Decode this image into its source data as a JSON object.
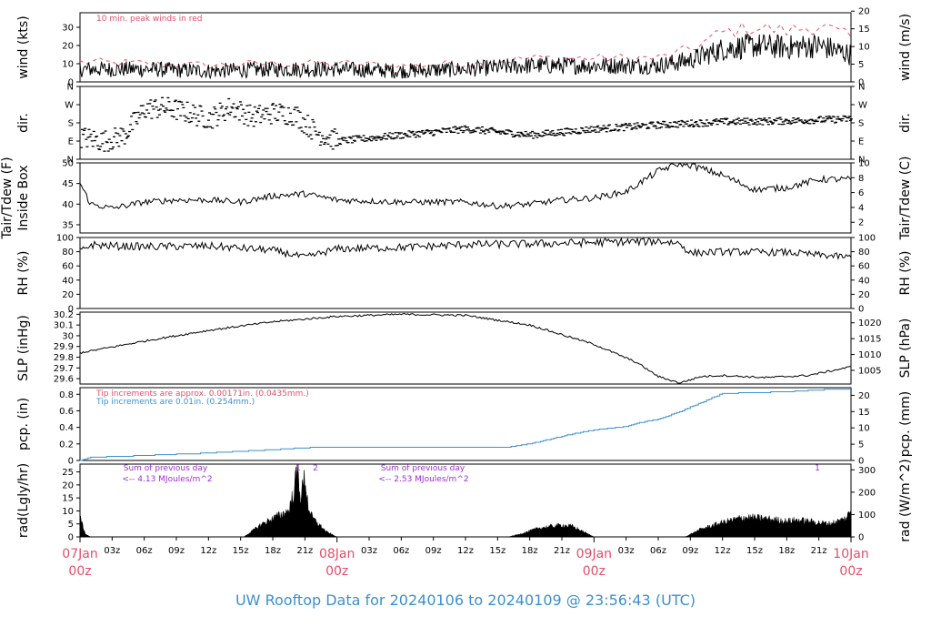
{
  "title": "UW Rooftop Data for 20240106  to  20240109 @ 23:56:43  (UTC)",
  "colors": {
    "red": "#e0506a",
    "blue": "#3b8fd1",
    "purple": "#9a2fd6",
    "line": "#000000"
  },
  "x_axis": {
    "hour_labels": [
      "03z",
      "06z",
      "09z",
      "12z",
      "15z",
      "18z",
      "21z"
    ],
    "days": [
      {
        "date": "07Jan",
        "hour": "00z"
      },
      {
        "date": "08Jan",
        "hour": "00z"
      },
      {
        "date": "09Jan",
        "hour": "00z"
      },
      {
        "date": "10Jan",
        "hour": "00z"
      }
    ]
  },
  "chart_data": [
    {
      "type": "line",
      "panel": "wind",
      "ylabel": "wind (kts)",
      "ylabel_right": "wind (m/s)",
      "ylim": [
        0,
        38
      ],
      "yticks": [
        0,
        10,
        20,
        30
      ],
      "yticks_right": [
        0,
        5,
        10,
        15,
        20
      ],
      "note": "10 min. peak winds in red",
      "x_hours": [
        0,
        6,
        12,
        18,
        24,
        30,
        36,
        42,
        48,
        54,
        57,
        60,
        63,
        66,
        69,
        72
      ],
      "series": [
        {
          "name": "",
          "values": [
            7,
            7,
            6,
            7,
            7,
            6,
            7,
            9,
            9,
            9,
            12,
            18,
            20,
            19,
            20,
            15
          ]
        },
        {
          "name": "10 min. peak",
          "values": [
            11,
            10,
            9,
            10,
            10,
            9,
            10,
            13,
            13,
            13,
            18,
            27,
            30,
            28,
            31,
            24
          ]
        }
      ]
    },
    {
      "type": "scatter",
      "panel": "dir",
      "ylabel": "dir.",
      "ylabel_right": "dir.",
      "yticks": [
        "N",
        "E",
        "S",
        "W",
        "N"
      ],
      "x_hours": [
        0,
        2,
        3,
        4,
        6,
        8,
        10,
        12,
        14,
        16,
        18,
        20,
        22,
        24,
        30,
        36,
        42,
        48,
        54,
        60,
        66,
        72
      ],
      "values_deg": [
        110,
        90,
        100,
        120,
        250,
        255,
        230,
        200,
        260,
        210,
        230,
        220,
        130,
        90,
        120,
        150,
        120,
        150,
        170,
        185,
        190,
        200
      ]
    },
    {
      "type": "line",
      "panel": "temp",
      "ylabel": "Tair/Tdew (F)",
      "ylabel2": "Inside Box",
      "ylabel_right": "Tair/Tdew (C)",
      "ylim": [
        33,
        50
      ],
      "yticks": [
        35,
        40,
        45,
        50
      ],
      "yticks_right": [
        2,
        4,
        6,
        8,
        10
      ],
      "x_hours": [
        0,
        1,
        3,
        6,
        9,
        12,
        15,
        18,
        21,
        24,
        30,
        36,
        39,
        42,
        45,
        48,
        51,
        54,
        56,
        57,
        60,
        63,
        66,
        69,
        72
      ],
      "values": [
        45,
        40,
        39,
        40.5,
        41,
        41,
        40.5,
        42,
        42.5,
        41,
        40.5,
        40.5,
        39.5,
        40,
        41,
        41.5,
        43,
        48,
        50,
        49.5,
        47,
        43.5,
        44,
        46,
        46
      ]
    },
    {
      "type": "line",
      "panel": "rh",
      "ylabel": "RH (%)",
      "ylabel_right": "RH (%)",
      "ylim": [
        0,
        100
      ],
      "yticks": [
        0,
        20,
        40,
        60,
        80,
        100
      ],
      "x_hours": [
        0,
        1,
        3,
        6,
        12,
        18,
        21,
        24,
        30,
        36,
        42,
        48,
        54,
        56,
        57,
        60,
        66,
        72
      ],
      "values": [
        80,
        90,
        88,
        87,
        88,
        82,
        72,
        84,
        86,
        90,
        91,
        93,
        95,
        92,
        78,
        80,
        79,
        72
      ]
    },
    {
      "type": "line",
      "panel": "slp",
      "ylabel": "SLP (inHg)",
      "ylabel_right": "SLP (hPa)",
      "ylim": [
        29.55,
        30.22
      ],
      "yticks": [
        29.6,
        29.7,
        29.8,
        29.9,
        30.0,
        30.1,
        30.2
      ],
      "yticks_right": [
        1005,
        1010,
        1015,
        1020
      ],
      "x_hours": [
        0,
        6,
        12,
        18,
        24,
        30,
        36,
        42,
        48,
        52,
        54,
        56,
        58,
        60,
        64,
        68,
        72
      ],
      "values": [
        29.84,
        29.95,
        30.05,
        30.13,
        30.18,
        30.2,
        30.19,
        30.1,
        29.92,
        29.75,
        29.62,
        29.56,
        29.62,
        29.63,
        29.61,
        29.63,
        29.71
      ]
    },
    {
      "type": "line",
      "panel": "pcp",
      "ylabel": "pcp. (in)",
      "ylabel_right": "pcp. (mm)",
      "ylim": [
        0,
        0.88
      ],
      "yticks": [
        0.0,
        0.2,
        0.4,
        0.6,
        0.8
      ],
      "yticks_right": [
        0,
        5,
        10,
        15,
        20
      ],
      "note_red": "Tip increments are approx. 0.00171in. (0.0435mm.)",
      "note_blue": "Tip increments are 0.01in. (0.254mm.)",
      "x_hours": [
        0,
        1,
        4,
        12,
        18,
        22,
        40,
        42,
        44,
        46,
        48,
        51,
        52,
        54,
        56,
        60,
        63,
        66,
        70,
        72
      ],
      "values": [
        0.0,
        0.04,
        0.05,
        0.09,
        0.13,
        0.16,
        0.16,
        0.2,
        0.26,
        0.32,
        0.37,
        0.41,
        0.45,
        0.5,
        0.59,
        0.81,
        0.82,
        0.83,
        0.86,
        0.86
      ]
    },
    {
      "type": "area",
      "panel": "rad",
      "ylabel": "rad(Lgly/hr)",
      "ylabel_right": "rad (W/m^2)",
      "ylim": [
        0,
        28
      ],
      "yticks": [
        0,
        5,
        10,
        15,
        20,
        25
      ],
      "yticks_right": [
        0,
        100,
        200,
        300
      ],
      "notes": [
        {
          "line1": "Sum of previous day",
          "line2": "<-- 4.13 MJoules/m^2"
        },
        {
          "line1": "Sum of previous day",
          "line2": "<-- 2.53 MJoules/m^2"
        }
      ],
      "markers": [
        "1",
        "2",
        "1"
      ],
      "x_hours": [
        0,
        0.2,
        0.5,
        1,
        15.3,
        16,
        17,
        18,
        19,
        19.5,
        20,
        20.3,
        20.6,
        21,
        21.3,
        21.6,
        22,
        23,
        24,
        40,
        41,
        43,
        45,
        46,
        47,
        48,
        56.5,
        58,
        60,
        62,
        64,
        66,
        67,
        70,
        71.5,
        72
      ],
      "values": [
        10,
        5,
        1,
        0,
        0,
        2,
        5,
        7,
        9,
        10,
        18,
        26,
        15,
        23,
        12,
        8,
        6,
        2,
        0,
        0,
        1,
        3.5,
        4.5,
        4,
        2,
        0,
        0,
        3,
        5.5,
        7.5,
        7,
        6,
        6.5,
        5,
        7,
        10
      ]
    }
  ]
}
